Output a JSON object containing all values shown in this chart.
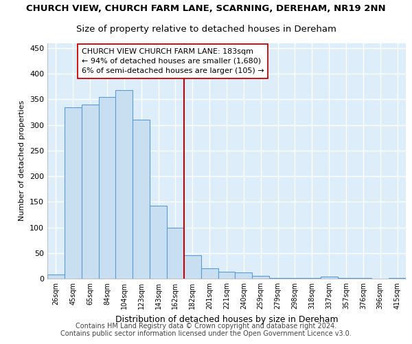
{
  "title": "CHURCH VIEW, CHURCH FARM LANE, SCARNING, DEREHAM, NR19 2NN",
  "subtitle": "Size of property relative to detached houses in Dereham",
  "xlabel": "Distribution of detached houses by size in Dereham",
  "ylabel": "Number of detached properties",
  "categories": [
    "26sqm",
    "45sqm",
    "65sqm",
    "84sqm",
    "104sqm",
    "123sqm",
    "143sqm",
    "162sqm",
    "182sqm",
    "201sqm",
    "221sqm",
    "240sqm",
    "259sqm",
    "279sqm",
    "298sqm",
    "318sqm",
    "337sqm",
    "357sqm",
    "376sqm",
    "396sqm",
    "415sqm"
  ],
  "values": [
    8,
    335,
    340,
    355,
    368,
    310,
    143,
    100,
    46,
    20,
    14,
    12,
    5,
    2,
    2,
    2,
    4,
    2,
    1,
    0,
    2
  ],
  "bar_color": "#c8dff2",
  "bar_edge_color": "#5b9bd5",
  "highlight_index": 8,
  "highlight_color": "#cc0000",
  "annotation_line1": "CHURCH VIEW CHURCH FARM LANE: 183sqm",
  "annotation_line2": "← 94% of detached houses are smaller (1,680)",
  "annotation_line3": "6% of semi-detached houses are larger (105) →",
  "annotation_box_color": "#ffffff",
  "annotation_box_edge": "#cc0000",
  "ylim": [
    0,
    460
  ],
  "yticks": [
    0,
    50,
    100,
    150,
    200,
    250,
    300,
    350,
    400,
    450
  ],
  "footer": "Contains HM Land Registry data © Crown copyright and database right 2024.\nContains public sector information licensed under the Open Government Licence v3.0.",
  "background_color": "#ddeefa",
  "grid_color": "#ffffff",
  "title_fontsize": 9.5,
  "subtitle_fontsize": 9.5,
  "annotation_fontsize": 8,
  "footer_fontsize": 7
}
